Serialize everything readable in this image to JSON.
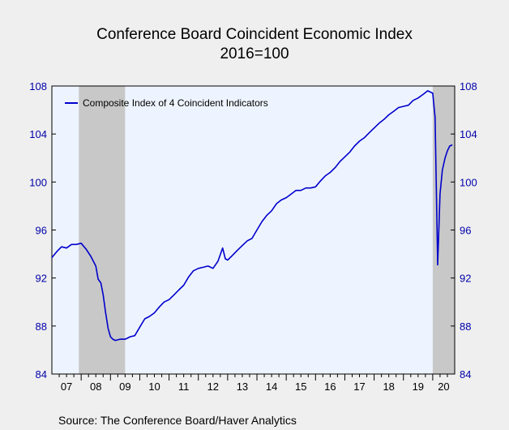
{
  "chart_data": {
    "type": "line",
    "title": "Conference Board Coincident Economic Index",
    "subtitle": "2016=100",
    "source": "Source:  The Conference Board/Haver Analytics",
    "ylim": [
      84,
      108
    ],
    "yticks": [
      84,
      88,
      92,
      96,
      100,
      104,
      108
    ],
    "xlim": [
      2007.0,
      2020.75
    ],
    "xtick_labels": [
      "07",
      "08",
      "09",
      "10",
      "11",
      "12",
      "13",
      "14",
      "15",
      "16",
      "17",
      "18",
      "19",
      "20"
    ],
    "grid": false,
    "legend_position": "top-left",
    "colors": {
      "line": "#0000cc",
      "plot_bg": "#eef4ff",
      "recession": "#c8c8c8",
      "axis_text": "#0000aa"
    },
    "recessions": [
      [
        2007.92,
        2009.5
      ],
      [
        2020.0,
        2020.75
      ]
    ],
    "series": [
      {
        "name": "Composite Index of 4 Coincident Indicators",
        "x": [
          2007.0,
          2007.17,
          2007.33,
          2007.5,
          2007.67,
          2007.83,
          2008.0,
          2008.17,
          2008.33,
          2008.5,
          2008.58,
          2008.67,
          2008.75,
          2008.83,
          2008.92,
          2009.0,
          2009.08,
          2009.17,
          2009.33,
          2009.5,
          2009.67,
          2009.83,
          2010.0,
          2010.17,
          2010.33,
          2010.5,
          2010.67,
          2010.83,
          2011.0,
          2011.17,
          2011.33,
          2011.5,
          2011.67,
          2011.83,
          2012.0,
          2012.17,
          2012.33,
          2012.5,
          2012.67,
          2012.83,
          2012.92,
          2013.0,
          2013.17,
          2013.33,
          2013.5,
          2013.67,
          2013.83,
          2014.0,
          2014.17,
          2014.33,
          2014.5,
          2014.67,
          2014.83,
          2015.0,
          2015.17,
          2015.33,
          2015.5,
          2015.67,
          2015.83,
          2016.0,
          2016.17,
          2016.33,
          2016.5,
          2016.67,
          2016.83,
          2017.0,
          2017.17,
          2017.33,
          2017.5,
          2017.67,
          2017.83,
          2018.0,
          2018.17,
          2018.33,
          2018.5,
          2018.67,
          2018.83,
          2019.0,
          2019.17,
          2019.33,
          2019.5,
          2019.67,
          2019.83,
          2020.0,
          2020.08,
          2020.17,
          2020.25,
          2020.33,
          2020.42,
          2020.5,
          2020.58,
          2020.67
        ],
        "values": [
          93.7,
          94.2,
          94.6,
          94.5,
          94.8,
          94.8,
          94.9,
          94.4,
          93.8,
          93.0,
          91.9,
          91.6,
          90.6,
          89.2,
          87.8,
          87.1,
          86.9,
          86.8,
          86.9,
          86.9,
          87.1,
          87.2,
          87.9,
          88.6,
          88.8,
          89.1,
          89.6,
          90.0,
          90.2,
          90.6,
          91.0,
          91.4,
          92.1,
          92.6,
          92.8,
          92.9,
          93.0,
          92.8,
          93.4,
          94.5,
          93.6,
          93.5,
          93.9,
          94.3,
          94.7,
          95.1,
          95.3,
          96.0,
          96.7,
          97.2,
          97.6,
          98.2,
          98.5,
          98.7,
          99.0,
          99.3,
          99.3,
          99.5,
          99.5,
          99.6,
          100.1,
          100.5,
          100.8,
          101.2,
          101.7,
          102.1,
          102.5,
          103.0,
          103.4,
          103.7,
          104.1,
          104.5,
          104.9,
          105.2,
          105.6,
          105.9,
          106.2,
          106.3,
          106.4,
          106.8,
          107.0,
          107.3,
          107.6,
          107.4,
          105.4,
          93.1,
          99.0,
          101.0,
          102.0,
          102.6,
          103.0,
          103.1
        ]
      }
    ]
  }
}
